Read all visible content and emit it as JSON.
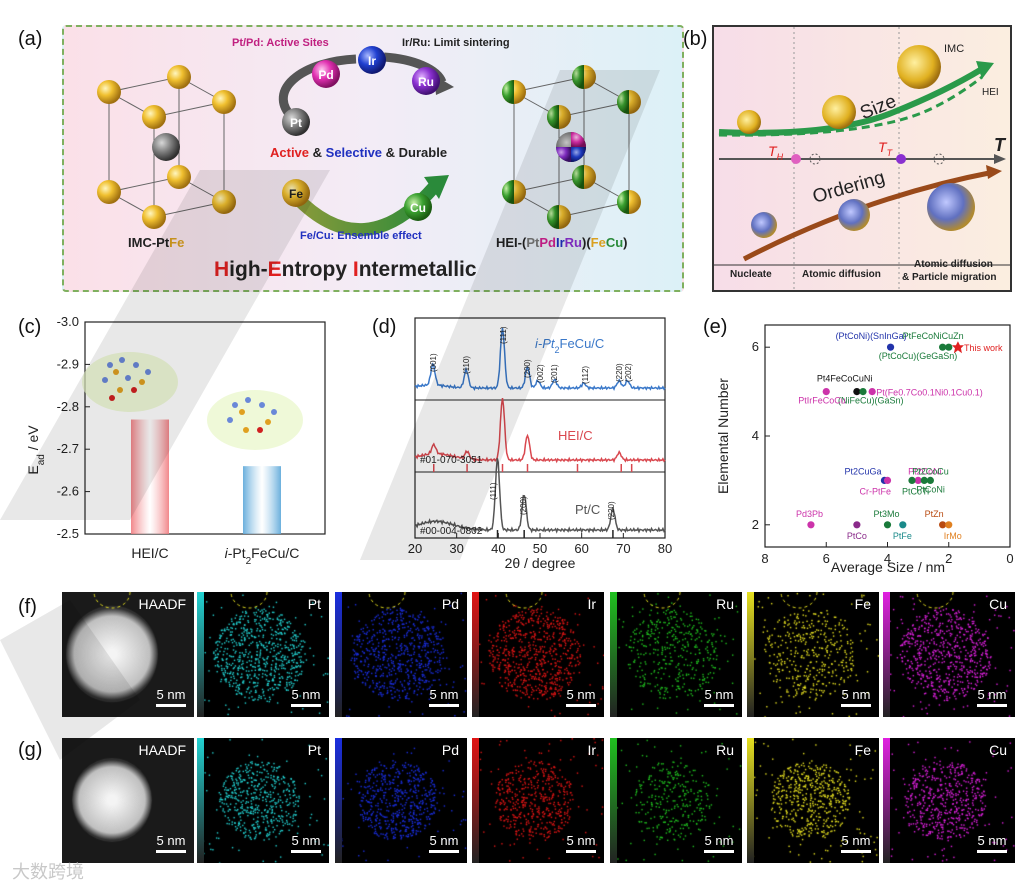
{
  "panels": {
    "a": "(a)",
    "b": "(b)",
    "c": "(c)",
    "d": "(d)",
    "e": "(e)",
    "f": "(f)",
    "g": "(g)"
  },
  "panel_a": {
    "left_label_prefix": "IMC-Pt",
    "left_label_suffix": "Fe",
    "right_label_prefix": "HEI-(",
    "right_label_pt": "Pt",
    "right_label_pd": "Pd",
    "right_label_ir": "Ir",
    "right_label_ru": "Ru",
    "right_label_mid": ")(",
    "right_label_fe": "Fe",
    "right_label_cu": "Cu",
    "right_label_end": ")",
    "caption_pt_pd": "Pt/Pd: Active Sites",
    "caption_ir_ru": "Ir/Ru: Limit sintering",
    "caption_fe_cu": "Fe/Cu: Ensemble effect",
    "middle_active": "Active",
    "middle_amp1": " & ",
    "middle_selective": "Selective",
    "middle_amp2": " & Durable",
    "title_h": "H",
    "title_igh": "igh-",
    "title_e": "E",
    "title_ntropy": "ntropy ",
    "title_i": "I",
    "title_ntermetallic": "ntermetallic",
    "spheres": [
      "Pt",
      "Pd",
      "Ir",
      "Ru",
      "Fe",
      "Cu"
    ]
  },
  "panel_b": {
    "imc": "IMC",
    "hei": "HEI",
    "size": "Size",
    "ordering": "Ordering",
    "t_axis": "T",
    "th": "T",
    "th_sub": "H",
    "tt": "T",
    "tt_sub": "T",
    "nucleate": "Nucleate",
    "atomic_diffusion": "Atomic diffusion",
    "atomic_diffusion2": "Atomic diffusion",
    "particle_migration": "& Particle migration"
  },
  "chart_data": [
    {
      "id": "c",
      "type": "bar",
      "categories": [
        "HEI/C",
        "i-Pt2FeCu/C"
      ],
      "values": [
        -2.77,
        -2.66
      ],
      "ylabel": "Ead / eV",
      "ylim": [
        -2.5,
        -3.0
      ],
      "yticks": [
        "-3.0",
        "-2.9",
        "-2.8",
        "-2.7",
        "-2.6",
        "-2.5"
      ],
      "colors": [
        "#f07a7e",
        "#5aa7d9"
      ]
    },
    {
      "id": "d",
      "type": "line",
      "xlabel": "2θ / degree",
      "xlim": [
        20,
        80
      ],
      "xticks": [
        "20",
        "30",
        "40",
        "50",
        "60",
        "70",
        "80"
      ],
      "series": [
        {
          "name": "i-Pt2FeCu/C",
          "color": "#3a78c9",
          "peaks": [
            [
              24.3,
              0.35
            ],
            [
              32.3,
              0.3
            ],
            [
              41.0,
              1.0
            ],
            [
              47.0,
              0.35
            ],
            [
              49.5,
              0.12
            ],
            [
              53.5,
              0.14
            ],
            [
              60.5,
              0.08
            ],
            [
              69.0,
              0.12
            ],
            [
              71.0,
              0.12
            ]
          ],
          "peak_labels": [
            "(001)",
            "(110)",
            "(111)",
            "(200)",
            "(002)",
            "(201)",
            "(112)",
            "(220)",
            "(202)"
          ]
        },
        {
          "name": "HEI/C",
          "color": "#d9484f",
          "peaks": [
            [
              24.5,
              0.15
            ],
            [
              32.5,
              0.12
            ],
            [
              41.0,
              1.0
            ],
            [
              47.0,
              0.4
            ],
            [
              69.0,
              0.12
            ]
          ]
        },
        {
          "name": "Pt/C",
          "color": "#555555",
          "peaks": [
            [
              39.8,
              1.0
            ],
            [
              46.2,
              0.5
            ],
            [
              67.5,
              0.3
            ]
          ],
          "peak_labels": [
            "(111)",
            "(200)",
            "(220)"
          ]
        }
      ],
      "references": [
        {
          "name": "#01-070-3051",
          "positions": [
            24.5,
            32.5,
            41.0,
            47.0,
            59.0,
            69.5,
            72.0
          ],
          "color": "#d9484f"
        },
        {
          "name": "#00-004-0802",
          "positions": [
            39.8,
            46.2,
            67.5
          ],
          "color": "#222222"
        }
      ]
    },
    {
      "id": "e",
      "type": "scatter",
      "xlabel": "Average Size / nm",
      "ylabel": "Elemental Number",
      "xlim": [
        8,
        0
      ],
      "ylim": [
        1.5,
        6.5
      ],
      "xticks": [
        "8",
        "6",
        "4",
        "2",
        "0"
      ],
      "yticks": [
        "2",
        "4",
        "6"
      ],
      "points": [
        {
          "label": "(PtCoNi)(SnInGa)",
          "x": 3.9,
          "y": 6,
          "color": "#2233aa"
        },
        {
          "label": "PtFeCoNiCuZn",
          "x": 2.2,
          "y": 6,
          "color": "#1a7a3a"
        },
        {
          "label": "(PtCoCu)(GeGaSn)",
          "x": 2.0,
          "y": 6,
          "color": "#1a7a3a"
        },
        {
          "label": "This work",
          "x": 1.7,
          "y": 6,
          "color": "#e02020"
        },
        {
          "label": "Pt4FeCoCuNi",
          "x": 5.0,
          "y": 5,
          "color": "#111111"
        },
        {
          "label": "(NiFeCu)(GaSn)",
          "x": 4.8,
          "y": 5,
          "color": "#1a7a3a"
        },
        {
          "label": "PtIrFeCoCu",
          "x": 6.0,
          "y": 5,
          "color": "#cc33aa"
        },
        {
          "label": "Pt(Fe0.7Co0.1Ni0.1Cu0.1)",
          "x": 4.5,
          "y": 5,
          "color": "#cc33aa"
        },
        {
          "label": "Pt2CuGa",
          "x": 4.1,
          "y": 3,
          "color": "#2233aa"
        },
        {
          "label": "Pt2CoNi",
          "x": 3.0,
          "y": 3,
          "color": "#cc33aa"
        },
        {
          "label": "Pt2CoCu",
          "x": 2.8,
          "y": 3,
          "color": "#1a7a3a"
        },
        {
          "label": "PtCoNi",
          "x": 2.6,
          "y": 3,
          "color": "#1a7a3a"
        },
        {
          "label": "Cr-PtFe",
          "x": 4.0,
          "y": 3,
          "color": "#cc33aa"
        },
        {
          "label": "PtCoTi",
          "x": 3.2,
          "y": 3,
          "color": "#1a7a3a"
        },
        {
          "label": "Pd3Pb",
          "x": 6.5,
          "y": 2,
          "color": "#cc33aa"
        },
        {
          "label": "PtCo",
          "x": 5.0,
          "y": 2,
          "color": "#8a2a8a"
        },
        {
          "label": "Pt3Mo",
          "x": 4.0,
          "y": 2,
          "color": "#1a7a3a"
        },
        {
          "label": "PtFe",
          "x": 3.5,
          "y": 2,
          "color": "#1a8a8a"
        },
        {
          "label": "PtZn",
          "x": 2.2,
          "y": 2,
          "color": "#b84a10"
        },
        {
          "label": "IrMo",
          "x": 2.0,
          "y": 2,
          "color": "#e08020"
        }
      ]
    }
  ],
  "panel_d_labels": {
    "i_pt2fecu": "i-Pt",
    "i_pt2fecu_sub": "2",
    "i_pt2fecu_end": "FeCu/C",
    "hei_c": "HEI/C",
    "pt_c": "Pt/C",
    "ref1": "#01-070-3051",
    "ref2": "#00-004-0802",
    "peak_001": "(001)",
    "peak_110": "(110)",
    "peak_111": "(111)",
    "peak_200": "(200)",
    "peak_002": "(002)",
    "peak_201": "(201)",
    "peak_112": "(112)",
    "peak_220": "(220)",
    "peak_202": "(202)",
    "pt_111": "(111)",
    "pt_200": "(200)",
    "pt_220": "(220)"
  },
  "panel_c_labels": {
    "ylabel_e": "E",
    "ylabel_sub": "ad",
    "ylabel_unit": " / eV",
    "cat1": "HEI/C",
    "cat2_pre": "i",
    "cat2_mid": "-Pt",
    "cat2_sub": "2",
    "cat2_end": "FeCu/C"
  },
  "panel_e_labels": {
    "this_work": "This work"
  },
  "eds": {
    "row_f": [
      {
        "label": "HAADF",
        "scale": "5 nm",
        "color": "#bbbbbb"
      },
      {
        "label": "Pt",
        "scale": "5 nm",
        "color": "#22d3d3"
      },
      {
        "label": "Pd",
        "scale": "5 nm",
        "color": "#1a2ee0"
      },
      {
        "label": "Ir",
        "scale": "5 nm",
        "color": "#e01515"
      },
      {
        "label": "Ru",
        "scale": "5 nm",
        "color": "#20c020"
      },
      {
        "label": "Fe",
        "scale": "5 nm",
        "color": "#e6e020"
      },
      {
        "label": "Cu",
        "scale": "5 nm",
        "color": "#e020e0"
      }
    ],
    "row_g": [
      {
        "label": "HAADF",
        "scale": "5 nm",
        "color": "#bbbbbb"
      },
      {
        "label": "Pt",
        "scale": "5 nm",
        "color": "#22d3d3"
      },
      {
        "label": "Pd",
        "scale": "5 nm",
        "color": "#1a2ee0"
      },
      {
        "label": "Ir",
        "scale": "5 nm",
        "color": "#e01515"
      },
      {
        "label": "Ru",
        "scale": "5 nm",
        "color": "#20c020"
      },
      {
        "label": "Fe",
        "scale": "5 nm",
        "color": "#e6e020"
      },
      {
        "label": "Cu",
        "scale": "5 nm",
        "color": "#e020e0"
      }
    ]
  },
  "footer": {
    "watermark_text": "大数跨境"
  }
}
